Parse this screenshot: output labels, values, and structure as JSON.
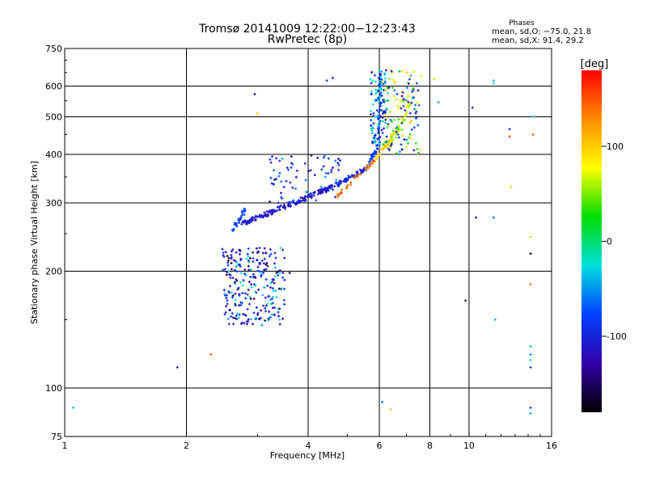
{
  "chart_data": {
    "type": "scatter",
    "title": "Tromsø 20141009 12:22:00−12:23:43",
    "subtitle": "RwPretec (8p)",
    "xlabel": "Frequency [MHz]",
    "ylabel": "Stationary phase Virtual Height [km]",
    "x_scale": "log",
    "y_scale": "log",
    "xlim": [
      1,
      16
    ],
    "ylim": [
      75,
      750
    ],
    "x_ticks": [
      1,
      2,
      4,
      6,
      8,
      10,
      16
    ],
    "y_ticks": [
      75,
      100,
      200,
      300,
      400,
      500,
      600,
      750
    ],
    "x_grid": [
      2,
      4,
      6,
      8,
      10
    ],
    "y_grid": [
      100,
      200,
      300,
      400,
      500,
      600
    ],
    "grid": true,
    "phase_stats": {
      "title": "Phases",
      "line_o": "mean, sd,O: −75.0, 21.8",
      "line_x": "mean, sd,X:  91.4, 29.2"
    },
    "colorbar": {
      "label": "[deg]",
      "range": [
        -180,
        180
      ],
      "ticks": [
        100,
        0,
        -100
      ],
      "colors": [
        "#ff0000",
        "#ff8c00",
        "#ffff00",
        "#00dd00",
        "#00e0e0",
        "#0040ff",
        "#3300aa",
        "#000000"
      ]
    },
    "series": [
      {
        "segments": [
          {
            "x": [
              2.75,
              4.6
            ],
            "y": [
              265,
              330
            ],
            "phase": -110,
            "n": 170
          },
          {
            "x": [
              4.6,
              5.6
            ],
            "y": [
              330,
              370
            ],
            "phase": -100,
            "n": 60
          },
          {
            "x": [
              5.6,
              5.95
            ],
            "y": [
              370,
              420
            ],
            "phase": -80,
            "n": 30
          },
          {
            "x": [
              5.98,
              6.05
            ],
            "y": [
              420,
              650
            ],
            "phase": -70,
            "n": 40
          },
          {
            "x": [
              2.6,
              2.8
            ],
            "y": [
              255,
              290
            ],
            "phase": -80,
            "n": 30
          }
        ]
      },
      {
        "segments": [
          {
            "x": [
              4.7,
              5.9
            ],
            "y": [
              310,
              390
            ],
            "phase": 140,
            "n": 35
          },
          {
            "x": [
              5.9,
              6.7
            ],
            "y": [
              390,
              470
            ],
            "phase": 95,
            "n": 45
          },
          {
            "x": [
              6.4,
              7.3
            ],
            "y": [
              420,
              560
            ],
            "phase": 60,
            "n": 40
          }
        ]
      }
    ],
    "clouds": [
      {
        "x": [
          2.45,
          3.5
        ],
        "y": [
          145,
          230
        ],
        "n": 260,
        "phases": [
          -120,
          -90,
          -30,
          -150,
          -100
        ]
      },
      {
        "x": [
          3.2,
          4.8
        ],
        "y": [
          300,
          400
        ],
        "n": 70,
        "phases": [
          -120,
          -90,
          -60
        ]
      },
      {
        "x": [
          5.7,
          6.3
        ],
        "y": [
          420,
          660
        ],
        "n": 110,
        "phases": [
          -80,
          -40,
          -20,
          -110
        ]
      },
      {
        "x": [
          6.1,
          7.6
        ],
        "y": [
          400,
          660
        ],
        "n": 130,
        "phases": [
          -120,
          -90,
          -60,
          30,
          90,
          60
        ]
      }
    ],
    "outliers": [
      {
        "x": 1.05,
        "y": 89,
        "phase": -40
      },
      {
        "x": 1.9,
        "y": 113,
        "phase": -100
      },
      {
        "x": 2.3,
        "y": 122,
        "phase": 150
      },
      {
        "x": 2.95,
        "y": 572,
        "phase": -120
      },
      {
        "x": 3.0,
        "y": 510,
        "phase": 100
      },
      {
        "x": 3.6,
        "y": 198,
        "phase": -150
      },
      {
        "x": 4.45,
        "y": 620,
        "phase": -100
      },
      {
        "x": 4.6,
        "y": 630,
        "phase": -110
      },
      {
        "x": 6.1,
        "y": 92,
        "phase": -60
      },
      {
        "x": 6.4,
        "y": 88,
        "phase": 110
      },
      {
        "x": 8.2,
        "y": 625,
        "phase": 60
      },
      {
        "x": 8.4,
        "y": 545,
        "phase": -40
      },
      {
        "x": 9.8,
        "y": 168,
        "phase": -150
      },
      {
        "x": 10.2,
        "y": 528,
        "phase": -110
      },
      {
        "x": 10.4,
        "y": 275,
        "phase": -120
      },
      {
        "x": 11.5,
        "y": 620,
        "phase": -40
      },
      {
        "x": 11.5,
        "y": 610,
        "phase": -20
      },
      {
        "x": 11.5,
        "y": 275,
        "phase": -60
      },
      {
        "x": 11.6,
        "y": 150,
        "phase": -40
      },
      {
        "x": 12.6,
        "y": 465,
        "phase": -100
      },
      {
        "x": 12.6,
        "y": 445,
        "phase": 160
      },
      {
        "x": 12.7,
        "y": 330,
        "phase": 100
      },
      {
        "x": 14.2,
        "y": 245,
        "phase": 60
      },
      {
        "x": 14.2,
        "y": 222,
        "phase": -170
      },
      {
        "x": 14.2,
        "y": 185,
        "phase": 140
      },
      {
        "x": 14.2,
        "y": 128,
        "phase": -40
      },
      {
        "x": 14.2,
        "y": 122,
        "phase": -60
      },
      {
        "x": 14.2,
        "y": 118,
        "phase": -20
      },
      {
        "x": 14.2,
        "y": 113,
        "phase": -80
      },
      {
        "x": 14.2,
        "y": 89,
        "phase": -100
      },
      {
        "x": 14.2,
        "y": 86,
        "phase": -40
      },
      {
        "x": 14.4,
        "y": 450,
        "phase": 150
      },
      {
        "x": 14.4,
        "y": 500,
        "phase": -20
      }
    ]
  }
}
